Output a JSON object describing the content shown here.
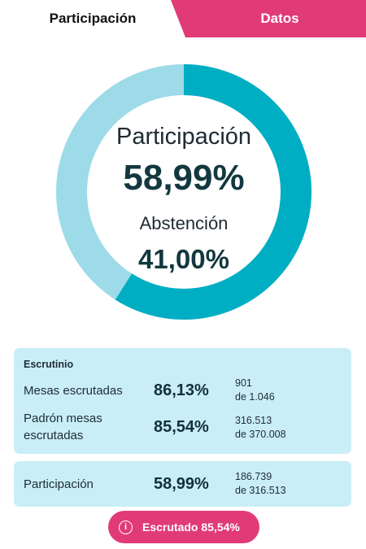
{
  "tabs": {
    "active_label": "Participación",
    "inactive_label": "Datos"
  },
  "colors": {
    "accent_pink": "#e13b77",
    "donut_primary": "#00aec3",
    "donut_secondary": "#9ddbe8",
    "card_bg": "#c9eef8"
  },
  "donut": {
    "participation_label": "Participación",
    "participation_value": "58,99%",
    "abstention_label": "Abstención",
    "abstention_value": "41,00%",
    "participation_fraction": 0.5899
  },
  "escrutinio": {
    "title": "Escrutinio",
    "rows": [
      {
        "label": "Mesas escrutadas",
        "percent": "86,13%",
        "count": "901",
        "total": "de 1.046"
      },
      {
        "label_line1": "Padrón mesas",
        "label_line2": "escrutadas",
        "percent": "85,54%",
        "count": "316.513",
        "total": "de 370.008"
      }
    ]
  },
  "participacion_card": {
    "label": "Participación",
    "percent": "58,99%",
    "count": "186.739",
    "total": "de 316.513"
  },
  "status_pill": {
    "icon": "info-icon",
    "text": "Escrutado 85,54%"
  }
}
